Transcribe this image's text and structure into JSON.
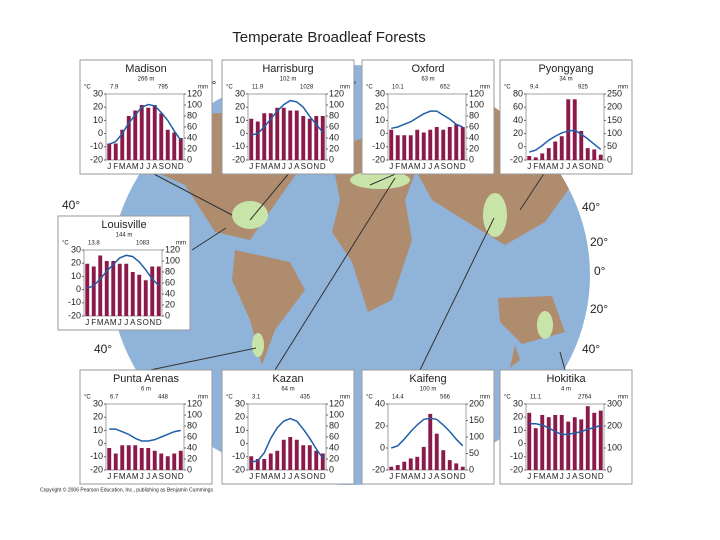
{
  "title": "Temperate Broadleaf Forests",
  "copyright": "Copyright © 2006 Pearson Education, Inc., publishing as Benjamin Cummings",
  "map_labels": [
    "0°",
    "0°",
    "40°",
    "40°",
    "40°",
    "20°",
    "0°",
    "20°",
    "40°"
  ],
  "chart_data": [
    {
      "type": "climate",
      "title": "Madison",
      "elevation": "266 m",
      "temp_unit": "°C",
      "mean_temp": 7.9,
      "precip_total": 795,
      "precip_unit": "mm",
      "categories": [
        "J",
        "F",
        "M",
        "A",
        "M",
        "J",
        "J",
        "A",
        "S",
        "O",
        "N",
        "D"
      ],
      "ylim": [
        -20,
        30
      ],
      "yticks": [
        -20,
        -10,
        0,
        10,
        20,
        30
      ],
      "y2lim": [
        0,
        120
      ],
      "y2ticks": [
        0,
        20,
        40,
        60,
        80,
        100,
        120
      ],
      "series": [
        {
          "color": "#8b1a4a",
          "axis": "y2",
          "values": [
            30,
            30,
            55,
            80,
            90,
            100,
            95,
            100,
            85,
            55,
            50,
            40
          ]
        },
        {
          "color": "#1f5fa8",
          "axis": "y",
          "values": [
            -8,
            -6,
            0,
            8,
            14,
            20,
            22,
            21,
            16,
            10,
            2,
            -5
          ]
        }
      ]
    },
    {
      "type": "climate",
      "title": "Harrisburg",
      "elevation": "102 m",
      "temp_unit": "°C",
      "mean_temp": 11.9,
      "precip_total": 1028,
      "precip_unit": "mm",
      "categories": [
        "J",
        "F",
        "M",
        "A",
        "M",
        "J",
        "J",
        "A",
        "S",
        "O",
        "N",
        "D"
      ],
      "ylim": [
        -20,
        30
      ],
      "yticks": [
        -20,
        -10,
        0,
        10,
        20,
        30
      ],
      "y2lim": [
        0,
        120
      ],
      "y2ticks": [
        0,
        20,
        40,
        60,
        80,
        100,
        120
      ],
      "series": [
        {
          "color": "#8b1a4a",
          "axis": "y2",
          "values": [
            75,
            70,
            85,
            85,
            95,
            95,
            90,
            90,
            80,
            75,
            80,
            80
          ]
        },
        {
          "color": "#1f5fa8",
          "axis": "y",
          "values": [
            -1,
            0,
            5,
            11,
            17,
            22,
            25,
            24,
            20,
            13,
            7,
            1
          ]
        }
      ]
    },
    {
      "type": "climate",
      "title": "Oxford",
      "elevation": "63 m",
      "temp_unit": "°C",
      "mean_temp": 10.1,
      "precip_total": 652,
      "precip_unit": "mm",
      "categories": [
        "J",
        "F",
        "M",
        "A",
        "M",
        "J",
        "J",
        "A",
        "S",
        "O",
        "N",
        "D"
      ],
      "ylim": [
        -20,
        30
      ],
      "yticks": [
        -20,
        -10,
        0,
        10,
        20,
        30
      ],
      "y2lim": [
        0,
        120
      ],
      "y2ticks": [
        0,
        20,
        40,
        60,
        80,
        100,
        120
      ],
      "series": [
        {
          "color": "#8b1a4a",
          "axis": "y2",
          "values": [
            55,
            45,
            45,
            45,
            55,
            50,
            55,
            60,
            55,
            60,
            65,
            60
          ]
        },
        {
          "color": "#1f5fa8",
          "axis": "y",
          "values": [
            4,
            5,
            7,
            9,
            12,
            15,
            17,
            17,
            14,
            11,
            7,
            5
          ]
        }
      ]
    },
    {
      "type": "climate",
      "title": "Pyongyang",
      "elevation": "34 m",
      "temp_unit": "°C",
      "mean_temp": 9.4,
      "precip_total": 925,
      "precip_unit": "mm",
      "categories": [
        "J",
        "F",
        "M",
        "A",
        "M",
        "J",
        "J",
        "A",
        "S",
        "O",
        "N",
        "D"
      ],
      "ylim": [
        -20,
        80
      ],
      "yticks": [
        -20,
        0,
        20,
        40,
        60,
        80
      ],
      "y2lim": [
        0,
        250
      ],
      "y2ticks": [
        0,
        50,
        100,
        150,
        200,
        250
      ],
      "series": [
        {
          "color": "#8b1a4a",
          "axis": "y2",
          "values": [
            15,
            10,
            25,
            45,
            70,
            90,
            230,
            230,
            110,
            45,
            40,
            20
          ]
        },
        {
          "color": "#1f5fa8",
          "axis": "y",
          "values": [
            -8,
            -5,
            2,
            10,
            16,
            21,
            24,
            25,
            19,
            12,
            4,
            -4
          ]
        }
      ]
    },
    {
      "type": "climate",
      "title": "Louisville",
      "elevation": "144 m",
      "temp_unit": "°C",
      "mean_temp": 13.8,
      "precip_total": 1083,
      "precip_unit": "mm",
      "categories": [
        "J",
        "F",
        "M",
        "A",
        "M",
        "J",
        "J",
        "A",
        "S",
        "O",
        "N",
        "D"
      ],
      "ylim": [
        -20,
        30
      ],
      "yticks": [
        -20,
        -10,
        0,
        10,
        20,
        30
      ],
      "y2lim": [
        0,
        120
      ],
      "y2ticks": [
        0,
        20,
        40,
        60,
        80,
        100,
        120
      ],
      "series": [
        {
          "color": "#8b1a4a",
          "axis": "y2",
          "values": [
            95,
            90,
            110,
            100,
            100,
            95,
            95,
            80,
            75,
            65,
            90,
            90
          ]
        },
        {
          "color": "#1f5fa8",
          "axis": "y",
          "values": [
            1,
            3,
            8,
            14,
            19,
            24,
            26,
            25,
            21,
            15,
            8,
            3
          ]
        }
      ]
    },
    {
      "type": "climate",
      "title": "Punta Arenas",
      "elevation": "6 m",
      "temp_unit": "°C",
      "mean_temp": 6.7,
      "precip_total": 448,
      "precip_unit": "mm",
      "categories": [
        "J",
        "F",
        "M",
        "A",
        "M",
        "J",
        "J",
        "A",
        "S",
        "O",
        "N",
        "D"
      ],
      "ylim": [
        -20,
        30
      ],
      "yticks": [
        -20,
        -10,
        0,
        10,
        20,
        30
      ],
      "y2lim": [
        0,
        120
      ],
      "y2ticks": [
        0,
        20,
        40,
        60,
        80,
        100,
        120
      ],
      "series": [
        {
          "color": "#8b1a4a",
          "axis": "y2",
          "values": [
            40,
            30,
            45,
            45,
            45,
            40,
            40,
            35,
            30,
            25,
            30,
            35
          ]
        },
        {
          "color": "#1f5fa8",
          "axis": "y",
          "values": [
            11,
            11,
            9,
            7,
            4,
            2,
            2,
            3,
            5,
            7,
            9,
            10
          ]
        }
      ]
    },
    {
      "type": "climate",
      "title": "Kazan",
      "elevation": "64 m",
      "temp_unit": "°C",
      "mean_temp": 3.1,
      "precip_total": 435,
      "precip_unit": "mm",
      "categories": [
        "J",
        "F",
        "M",
        "A",
        "M",
        "J",
        "J",
        "A",
        "S",
        "O",
        "N",
        "D"
      ],
      "ylim": [
        -20,
        30
      ],
      "yticks": [
        -20,
        -10,
        0,
        10,
        20,
        30
      ],
      "y2lim": [
        0,
        120
      ],
      "y2ticks": [
        0,
        20,
        40,
        60,
        80,
        100,
        120
      ],
      "series": [
        {
          "color": "#8b1a4a",
          "axis": "y2",
          "values": [
            25,
            20,
            20,
            30,
            35,
            55,
            60,
            55,
            45,
            45,
            35,
            30
          ]
        },
        {
          "color": "#1f5fa8",
          "axis": "y",
          "values": [
            -14,
            -13,
            -7,
            4,
            12,
            17,
            19,
            17,
            11,
            4,
            -4,
            -11
          ]
        }
      ]
    },
    {
      "type": "climate",
      "title": "Kaifeng",
      "elevation": "100 m",
      "temp_unit": "°C",
      "mean_temp": 14.4,
      "precip_total": 566,
      "precip_unit": "mm",
      "categories": [
        "J",
        "F",
        "M",
        "A",
        "M",
        "J",
        "J",
        "A",
        "S",
        "O",
        "N",
        "D"
      ],
      "ylim": [
        -20,
        40
      ],
      "yticks": [
        -20,
        0,
        20,
        40
      ],
      "y2lim": [
        0,
        200
      ],
      "y2ticks": [
        0,
        50,
        100,
        150,
        200
      ],
      "series": [
        {
          "color": "#8b1a4a",
          "axis": "y2",
          "values": [
            10,
            15,
            25,
            35,
            40,
            70,
            170,
            110,
            60,
            30,
            20,
            10
          ]
        },
        {
          "color": "#1f5fa8",
          "axis": "y",
          "values": [
            0,
            2,
            8,
            15,
            21,
            26,
            27,
            26,
            21,
            15,
            8,
            2
          ]
        }
      ]
    },
    {
      "type": "climate",
      "title": "Hokitika",
      "elevation": "4 m",
      "temp_unit": "°C",
      "mean_temp": 11.1,
      "precip_total": 2764,
      "precip_unit": "mm",
      "categories": [
        "J",
        "F",
        "M",
        "A",
        "M",
        "J",
        "J",
        "A",
        "S",
        "O",
        "N",
        "D"
      ],
      "ylim": [
        -20,
        30
      ],
      "yticks": [
        -20,
        -10,
        0,
        10,
        20,
        30
      ],
      "y2lim": [
        0,
        300
      ],
      "y2ticks": [
        0,
        100,
        200,
        300
      ],
      "series": [
        {
          "color": "#8b1a4a",
          "axis": "y2",
          "values": [
            260,
            190,
            250,
            240,
            250,
            250,
            220,
            240,
            230,
            290,
            260,
            270
          ]
        },
        {
          "color": "#1f5fa8",
          "axis": "y",
          "values": [
            15,
            15,
            14,
            12,
            9,
            7,
            7,
            8,
            9,
            11,
            12,
            14
          ]
        }
      ]
    }
  ]
}
